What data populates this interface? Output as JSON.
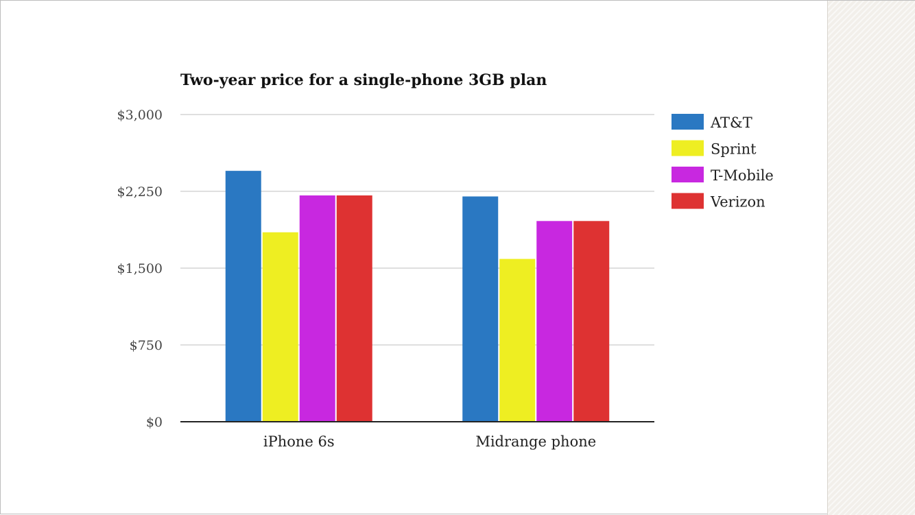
{
  "chart_data": {
    "type": "bar",
    "title": "Two-year price for a single-phone 3GB plan",
    "xlabel": "",
    "ylabel": "",
    "categories": [
      "iPhone 6s",
      "Midrange phone"
    ],
    "series": [
      {
        "name": "AT&T",
        "color": "#2a78c2",
        "values": [
          2450,
          2200
        ]
      },
      {
        "name": "Sprint",
        "color": "#eeee22",
        "values": [
          1850,
          1590
        ]
      },
      {
        "name": "T-Mobile",
        "color": "#c828e0",
        "values": [
          2210,
          1960
        ]
      },
      {
        "name": "Verizon",
        "color": "#de3232",
        "values": [
          2210,
          1960
        ]
      }
    ],
    "ylim": [
      0,
      3000
    ],
    "yticks": [
      0,
      750,
      1500,
      2250,
      3000
    ],
    "ytick_labels": [
      "$0",
      "$750",
      "$1,500",
      "$2,250",
      "$3,000"
    ],
    "grid": true,
    "legend": "right"
  }
}
